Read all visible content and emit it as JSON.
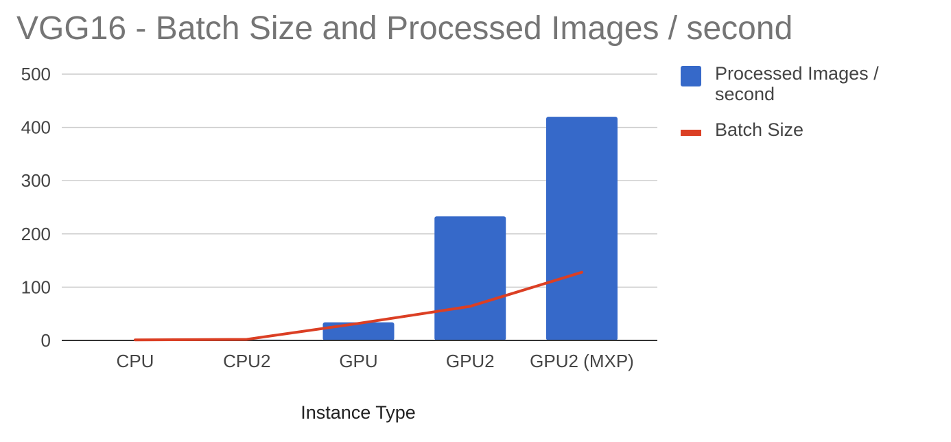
{
  "chart_data": {
    "type": "bar",
    "title": "VGG16 - Batch Size and Processed Images / second",
    "xlabel": "Instance Type",
    "ylabel": "",
    "categories": [
      "CPU",
      "CPU2",
      "GPU",
      "GPU2",
      "GPU2 (MXP)"
    ],
    "ylim": [
      0,
      500
    ],
    "yticks": [
      0,
      100,
      200,
      300,
      400,
      500
    ],
    "grid": true,
    "legend_position": "right",
    "series": [
      {
        "name": "Processed Images / second",
        "type": "bar",
        "color": "#3669C9",
        "values": [
          0.5,
          1.5,
          34,
          233,
          420
        ]
      },
      {
        "name": "Batch Size",
        "type": "line",
        "color": "#DB3F24",
        "values": [
          1,
          2,
          32,
          64,
          128
        ]
      }
    ]
  }
}
